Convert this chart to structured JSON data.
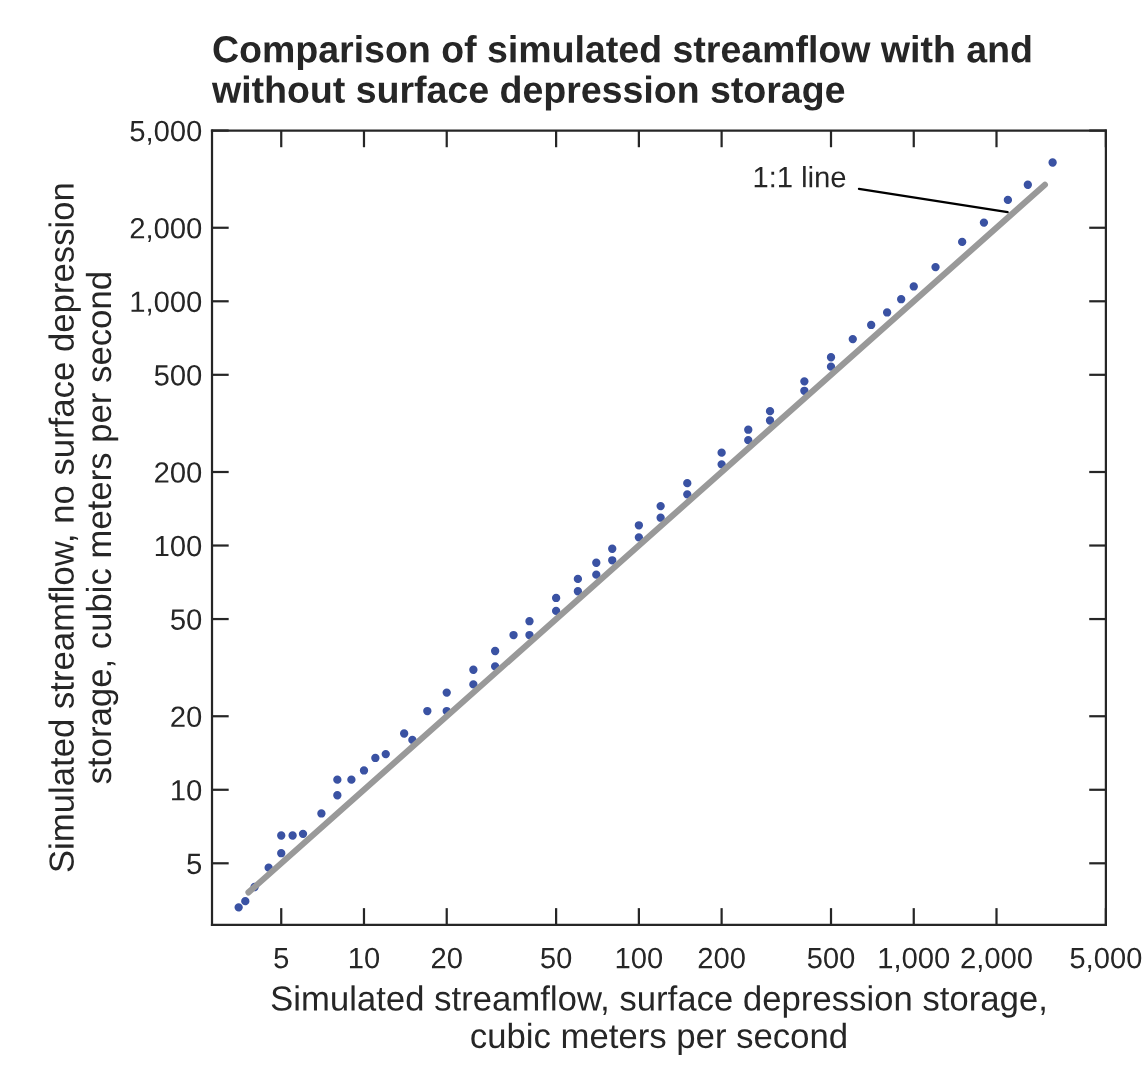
{
  "chart_data": {
    "type": "scatter",
    "title": "Comparison of simulated streamflow with and without surface depression storage",
    "xlabel": "Simulated streamflow, surface depression storage,\ncubic meters per second",
    "ylabel": "Simulated streamflow, no surface depression\nstorage, cubic meters per second",
    "log": "xy",
    "grid": false,
    "legend": false,
    "xlim": [
      2.8,
      5000
    ],
    "ylim": [
      2.8,
      5000
    ],
    "xticks": [
      5,
      10,
      20,
      50,
      100,
      200,
      500,
      {
        "value": 1000,
        "label": "1,000"
      },
      {
        "value": 2000,
        "label": "2,000"
      },
      {
        "value": 5000,
        "label": "5,000"
      }
    ],
    "yticks": [
      5,
      10,
      20,
      50,
      100,
      200,
      500,
      {
        "value": 1000,
        "label": "1,000"
      },
      {
        "value": 2000,
        "label": "2,000"
      },
      {
        "value": 5000,
        "label": "5,000"
      }
    ],
    "series": [
      {
        "type": "line",
        "color": "#999999",
        "line_style": "solid",
        "x": [
          3.8,
          3000
        ],
        "values": [
          3.8,
          3000
        ]
      },
      {
        "color": "#3a52a3",
        "marker": "circle",
        "x": [
          3.5,
          3.7,
          4,
          4.5,
          5,
          5,
          5.5,
          6,
          7,
          8,
          8,
          9,
          10,
          11,
          12,
          14,
          15,
          17,
          20,
          20,
          25,
          25,
          30,
          30,
          35,
          40,
          40,
          50,
          50,
          60,
          60,
          70,
          70,
          80,
          80,
          100,
          100,
          120,
          120,
          150,
          150,
          200,
          200,
          250,
          250,
          300,
          300,
          400,
          400,
          500,
          500,
          600,
          700,
          800,
          900,
          1000,
          1200,
          1500,
          1800,
          2200,
          2600,
          3200
        ],
        "values": [
          3.3,
          3.5,
          4,
          4.8,
          5.5,
          6.5,
          6.5,
          6.6,
          8,
          9.5,
          11,
          11,
          12,
          13.5,
          14,
          17,
          16,
          21,
          25,
          21,
          31,
          27,
          37,
          32,
          43,
          49,
          43,
          61,
          54,
          73,
          65,
          85,
          76,
          97,
          87,
          121,
          108,
          145,
          130,
          180,
          162,
          240,
          215,
          298,
          270,
          355,
          325,
          470,
          430,
          590,
          540,
          700,
          800,
          900,
          1020,
          1150,
          1380,
          1750,
          2100,
          2600,
          3000,
          3700
        ]
      }
    ],
    "annotations": [
      {
        "text": "1:1 line",
        "x": 2300,
        "y": 2300
      }
    ]
  }
}
